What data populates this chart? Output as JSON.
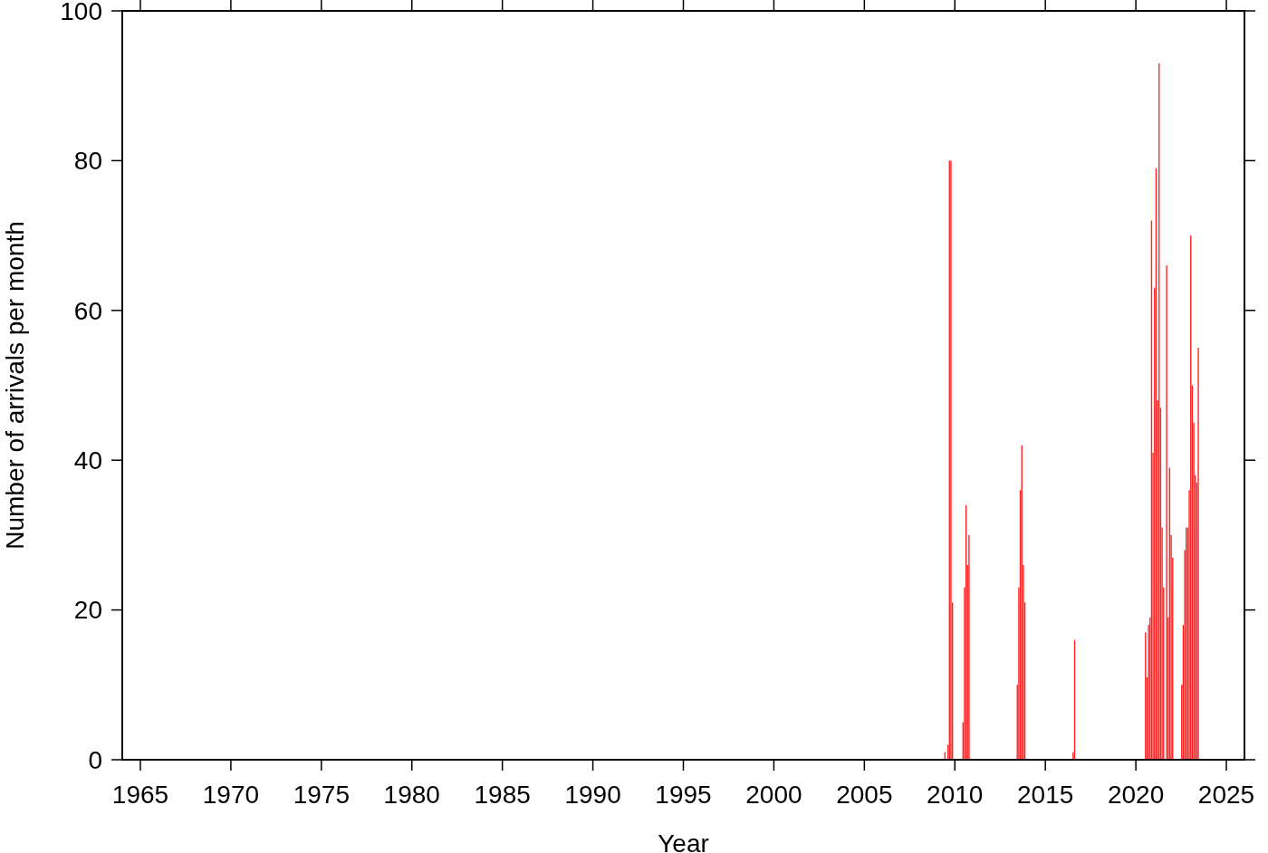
{
  "chart_data": {
    "type": "histogram",
    "xlabel": "Year",
    "ylabel": "Number of arrivals per month",
    "color": "#ff2020",
    "bins": [
      2009.417,
      2009.5,
      2009.583,
      2009.667,
      2009.75,
      2009.833,
      2009.917,
      2010.417,
      2010.5,
      2010.583,
      2010.667,
      2010.75,
      2010.833,
      2013.417,
      2013.5,
      2013.583,
      2013.667,
      2013.75,
      2013.833,
      2013.917,
      2016.5,
      2016.583,
      2016.667,
      2020.5,
      2020.583,
      2020.667,
      2020.75,
      2020.833,
      2020.917,
      2021,
      2021.083,
      2021.167,
      2021.25,
      2021.333,
      2021.417,
      2021.5,
      2021.583,
      2021.667,
      2021.75,
      2021.833,
      2021.917,
      2022,
      2022.083,
      2022.5,
      2022.583,
      2022.667,
      2022.75,
      2022.833,
      2022.917,
      2023,
      2023.083,
      2023.167,
      2023.25,
      2023.333,
      2023.417,
      2023.5
    ],
    "values": [
      1,
      0,
      2,
      80,
      80,
      21,
      0,
      5,
      23,
      34,
      26,
      30,
      0,
      10,
      23,
      36,
      42,
      26,
      21,
      0,
      1,
      16,
      0,
      17,
      11,
      18,
      19,
      72,
      41,
      63,
      79,
      48,
      93,
      47,
      31,
      23,
      0,
      66,
      19,
      39,
      30,
      27,
      0,
      10,
      18,
      28,
      31,
      31,
      36,
      70,
      50,
      45,
      38,
      37,
      55
    ],
    "xlim": [
      1964,
      2026
    ],
    "xticks": [
      1965,
      1970,
      1975,
      1980,
      1985,
      1990,
      1995,
      2000,
      2005,
      2010,
      2015,
      2020,
      2025
    ],
    "ylim": [
      0,
      100
    ],
    "yticks": [
      0,
      20,
      40,
      60,
      80,
      100
    ],
    "grid": false
  }
}
